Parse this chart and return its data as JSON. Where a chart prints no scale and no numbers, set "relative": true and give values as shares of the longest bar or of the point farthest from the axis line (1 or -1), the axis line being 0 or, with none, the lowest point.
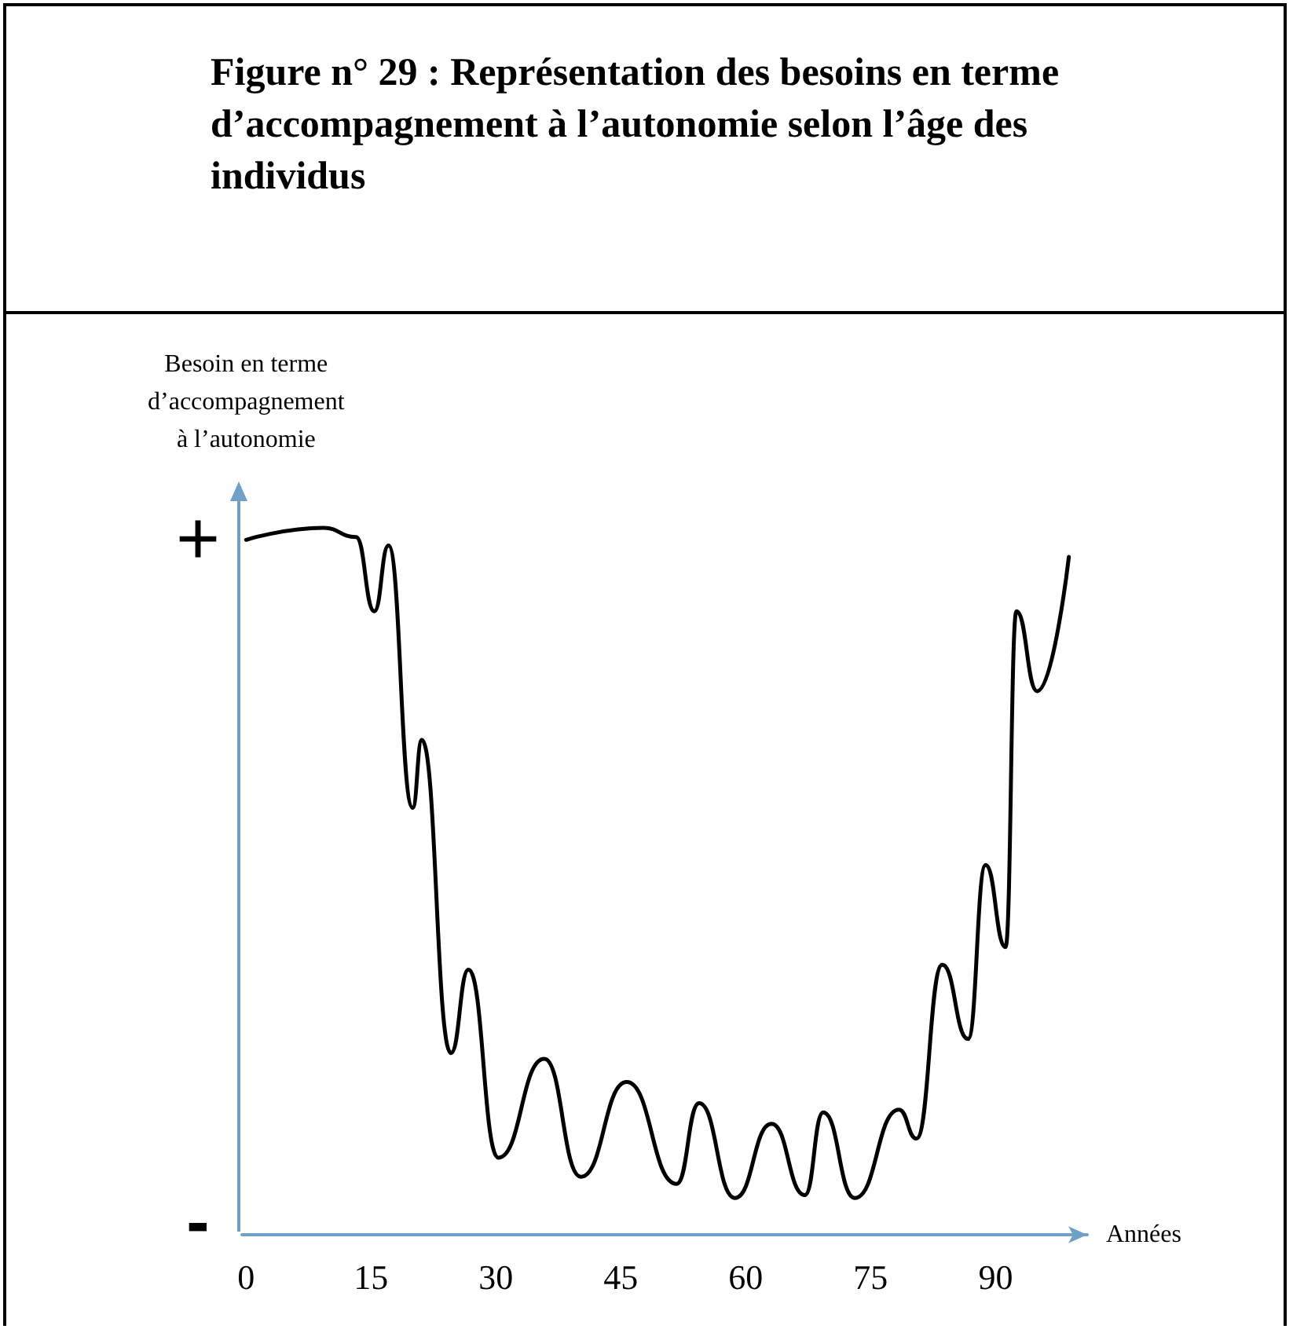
{
  "chart_data": {
    "type": "line",
    "title": "Figure n° 29 : Représentation des besoins en terme d’accompagnement à l’autonomie selon l’âge des individus",
    "xlabel": "Années",
    "ylabel": "Besoin en terme\nd’accompagnement\nà l’autonomie",
    "annotations": [
      "+",
      "-"
    ],
    "relative": true,
    "xlim": [
      -0.5,
      101
    ],
    "xticks": [
      0,
      15,
      30,
      45,
      60,
      75,
      90
    ],
    "grid": false,
    "marker": "none",
    "line_style": "solid",
    "series": [
      {
        "color": "#000000",
        "x": [
          0,
          9.3,
          13.2,
          15.4,
          17.1,
          20.0,
          21.1,
          24.6,
          26.7,
          30.3,
          35.8,
          40.2,
          45.7,
          51.7,
          54.4,
          58.7,
          63.1,
          67.1,
          69.3,
          73.1,
          78.4,
          80.5,
          83.6,
          86.7,
          88.8,
          91.2,
          92.5,
          95.0,
          98.8
        ],
        "values": [
          0.983,
          1,
          0.987,
          0.882,
          0.975,
          0.604,
          0.7,
          0.257,
          0.375,
          0.109,
          0.249,
          0.082,
          0.216,
          0.072,
          0.186,
          0.052,
          0.157,
          0.056,
          0.173,
          0.052,
          0.177,
          0.136,
          0.382,
          0.277,
          0.523,
          0.407,
          0.882,
          0.769,
          0.959
        ]
      }
    ]
  }
}
